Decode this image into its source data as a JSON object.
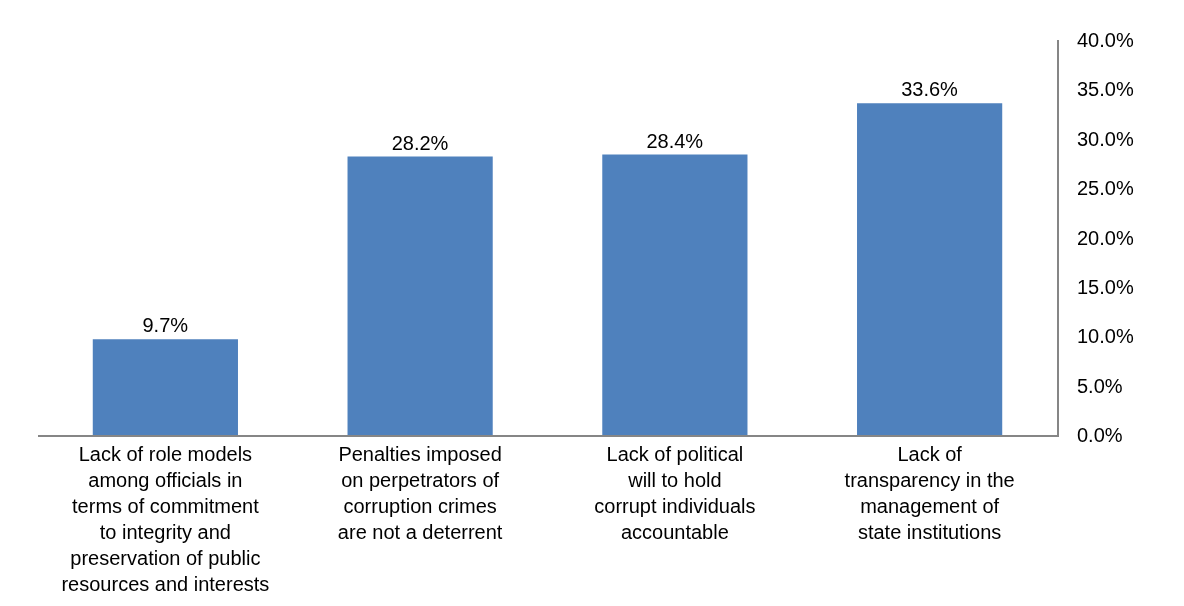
{
  "chart_data": {
    "type": "bar",
    "categories": [
      "Lack of role models\namong officials in\nterms of commitment\nto integrity and\npreservation of public\nresources and interests",
      "Penalties imposed\non perpetrators of\ncorruption crimes\nare not a deterrent",
      "Lack of political\nwill to hold\ncorrupt individuals\naccountable",
      "Lack of\ntransparency in the\nmanagement of\nstate institutions"
    ],
    "values": [
      9.7,
      28.2,
      28.4,
      33.6
    ],
    "color": "#4f81bd",
    "value_labels": [
      "9.7%",
      "28.2%",
      "28.4%",
      "33.6%"
    ],
    "ylim": [
      0,
      40
    ],
    "yticks": [
      {
        "value": 0,
        "label": "0.0%"
      },
      {
        "value": 5,
        "label": "5.0%"
      },
      {
        "value": 10,
        "label": "10.0%"
      },
      {
        "value": 15,
        "label": "15.0%"
      },
      {
        "value": 20,
        "label": "20.0%"
      },
      {
        "value": 25,
        "label": "25.0%"
      },
      {
        "value": 30,
        "label": "30.0%"
      },
      {
        "value": 35,
        "label": "35.0%"
      },
      {
        "value": 40,
        "label": "40.0%"
      }
    ]
  }
}
